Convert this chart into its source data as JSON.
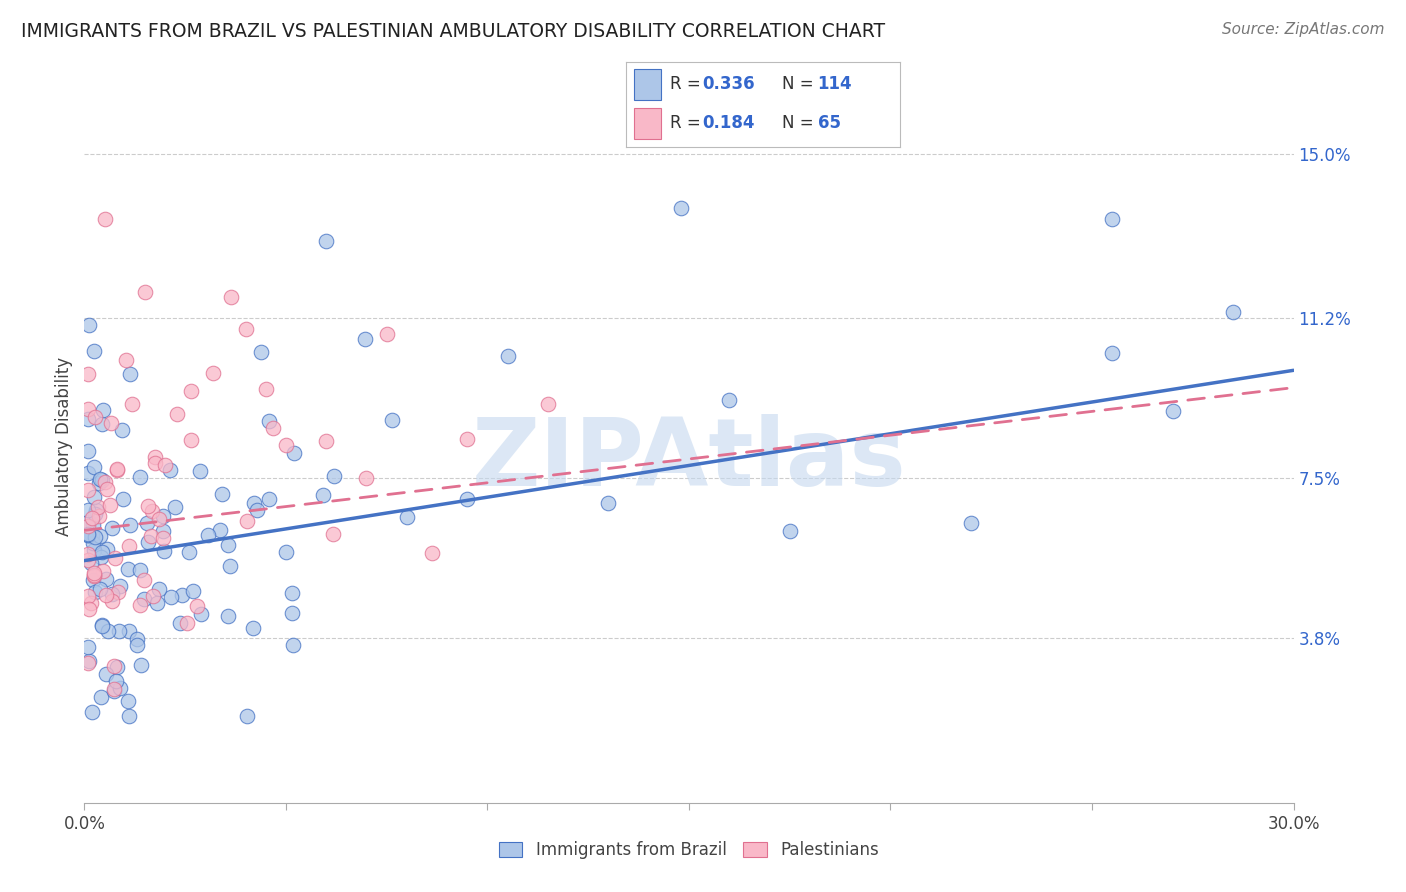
{
  "title": "IMMIGRANTS FROM BRAZIL VS PALESTINIAN AMBULATORY DISABILITY CORRELATION CHART",
  "source": "Source: ZipAtlas.com",
  "ylabel": "Ambulatory Disability",
  "xlim": [
    0.0,
    0.3
  ],
  "ylim": [
    0.0,
    0.165
  ],
  "xtick_positions": [
    0.0,
    0.05,
    0.1,
    0.15,
    0.2,
    0.25,
    0.3
  ],
  "xtick_labels": [
    "0.0%",
    "",
    "",
    "",
    "",
    "",
    "30.0%"
  ],
  "ytick_positions": [
    0.038,
    0.075,
    0.112,
    0.15
  ],
  "ytick_labels": [
    "3.8%",
    "7.5%",
    "11.2%",
    "15.0%"
  ],
  "brazil_R": 0.336,
  "brazil_N": 114,
  "palestinians_R": 0.184,
  "palestinians_N": 65,
  "brazil_face_color": "#adc6e8",
  "brazil_edge_color": "#4472c4",
  "pal_face_color": "#f9b8c8",
  "pal_edge_color": "#e07090",
  "brazil_line_color": "#4472c4",
  "pal_line_color": "#e07090",
  "legend_text_color": "#3366cc",
  "right_axis_color": "#3366cc",
  "grid_color": "#cccccc",
  "watermark_text": "ZIPAtlas",
  "watermark_color": "#c5d8ef",
  "bg_color": "#ffffff",
  "brazil_line_start_y": 0.056,
  "brazil_line_end_y": 0.1,
  "pal_line_start_y": 0.063,
  "pal_line_end_y": 0.096,
  "brazil_seed": 42,
  "pal_seed": 99
}
